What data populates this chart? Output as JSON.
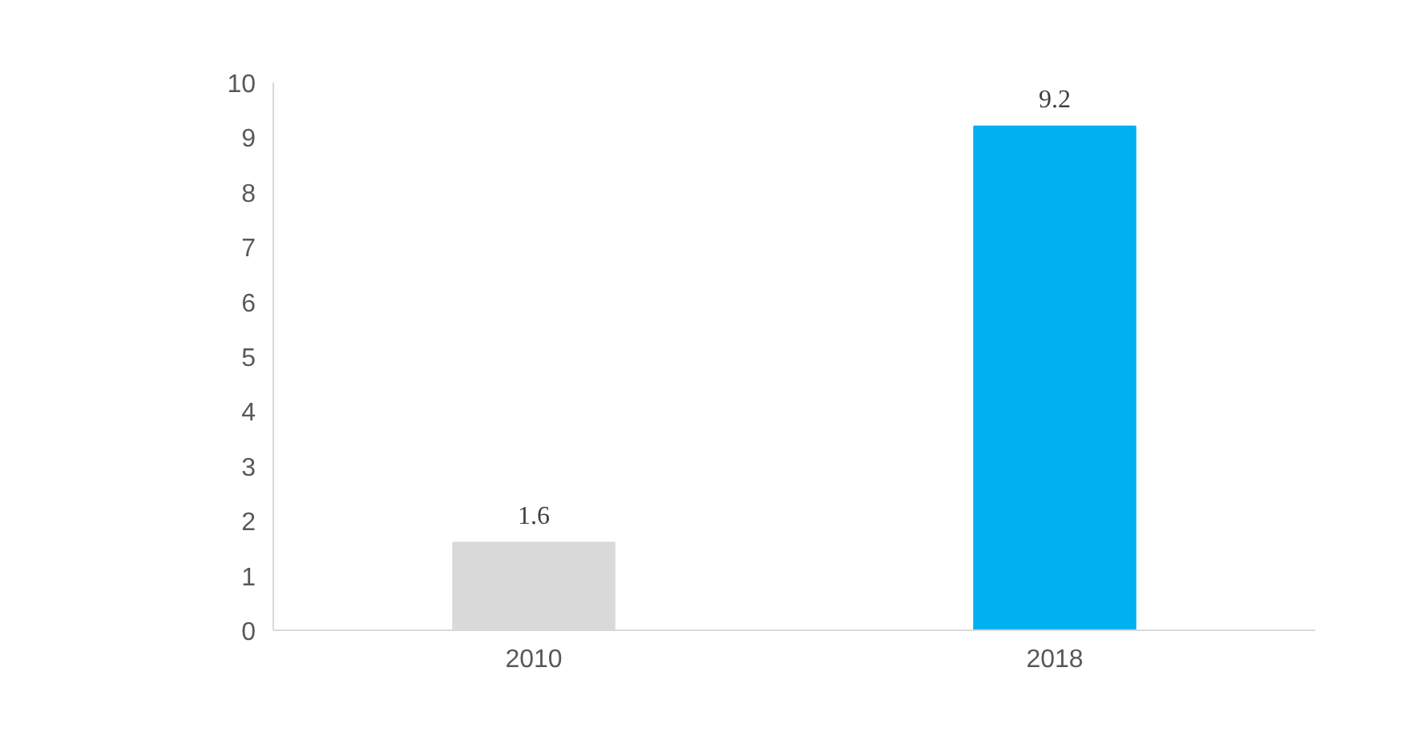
{
  "chart_data": {
    "type": "bar",
    "categories": [
      "2010",
      "2018"
    ],
    "values": [
      1.6,
      9.2
    ],
    "colors": [
      "#d9d9d9",
      "#00b0f0"
    ],
    "ylim": [
      0,
      10
    ],
    "yticks": [
      0,
      1,
      2,
      3,
      4,
      5,
      6,
      7,
      8,
      9,
      10
    ],
    "grid": false,
    "data_labels": true
  }
}
